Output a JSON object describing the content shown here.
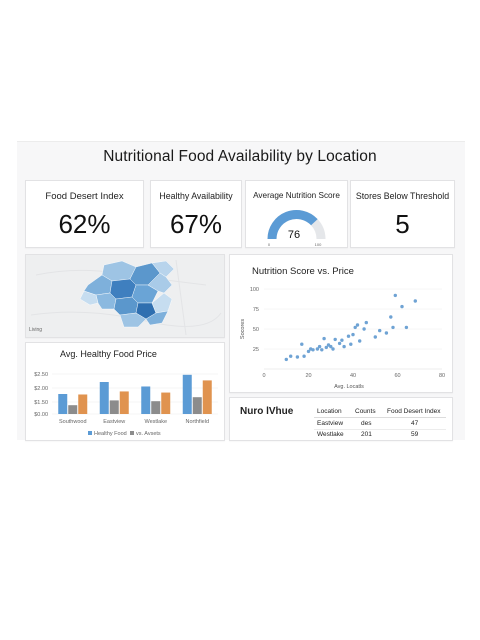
{
  "page": {
    "title": "Nutritional Food Availability by Location"
  },
  "kpis": [
    {
      "label": "Food Desert Index",
      "value": "62%"
    },
    {
      "label": "Healthy Availability",
      "value": "67%"
    },
    {
      "label": "Average Nutrition Score",
      "value": "76",
      "gauge": {
        "min": "0",
        "max": "100",
        "fraction": 0.76
      }
    },
    {
      "label": "Stores Below Threshold",
      "value": "5"
    }
  ],
  "map": {
    "caption": "Living"
  },
  "price_chart": {
    "title": "Avg. Healthy Food Price",
    "legend": [
      "Healthy Food",
      "vs. Avsets"
    ],
    "colors": {
      "healthy": "#5b9bd5",
      "second": "#8c8c8c",
      "third": "#e0934f"
    }
  },
  "scatter_chart": {
    "title": "Nutrition Score vs. Price",
    "xlabel": "Avg. Locatls",
    "ylabel": "Socores",
    "color": "#6fa3d4"
  },
  "table": {
    "brand": "Nuro lVhue",
    "headers": [
      "Location",
      "Counts",
      "Food Desert Index"
    ],
    "rows": [
      [
        "Eastview",
        "des",
        "47"
      ],
      [
        "Westlake",
        "201",
        "59"
      ]
    ]
  },
  "chart_data": [
    {
      "type": "bar",
      "title": "Avg. Healthy Food Price",
      "categories": [
        "Southwood",
        "Eastview",
        "Westlake",
        "Northfield"
      ],
      "series": [
        {
          "name": "Healthy Food",
          "values": [
            1.25,
            2.0,
            1.72,
            2.45
          ]
        },
        {
          "values": [
            0.55,
            0.85,
            0.8,
            1.05
          ]
        },
        {
          "name": "vs. Avsets",
          "values": [
            1.22,
            1.41,
            1.34,
            2.1
          ]
        }
      ],
      "yticks": [
        "$0.00",
        "$1.50",
        "$2.00",
        "$2.50"
      ],
      "ylim": [
        0,
        3.0
      ]
    },
    {
      "type": "scatter",
      "title": "Nutrition Score vs. Price",
      "xlabel": "Avg. Locatls",
      "ylabel": "Socores",
      "xlim": [
        0,
        80
      ],
      "ylim": [
        0,
        100
      ],
      "xticks": [
        0,
        20,
        40,
        60,
        80
      ],
      "yticks": [
        25,
        50,
        75,
        100
      ],
      "points": [
        [
          10,
          12
        ],
        [
          12,
          16
        ],
        [
          15,
          15
        ],
        [
          17,
          31
        ],
        [
          18,
          16
        ],
        [
          20,
          22
        ],
        [
          21,
          25
        ],
        [
          22,
          24
        ],
        [
          24,
          25
        ],
        [
          25,
          28
        ],
        [
          26,
          24
        ],
        [
          27,
          38
        ],
        [
          28,
          27
        ],
        [
          29,
          30
        ],
        [
          30,
          28
        ],
        [
          31,
          25
        ],
        [
          32,
          37
        ],
        [
          34,
          32
        ],
        [
          35,
          36
        ],
        [
          36,
          28
        ],
        [
          38,
          41
        ],
        [
          39,
          31
        ],
        [
          40,
          43
        ],
        [
          41,
          52
        ],
        [
          42,
          55
        ],
        [
          43,
          35
        ],
        [
          45,
          50
        ],
        [
          46,
          58
        ],
        [
          50,
          40
        ],
        [
          52,
          48
        ],
        [
          55,
          45
        ],
        [
          57,
          65
        ],
        [
          58,
          52
        ],
        [
          59,
          92
        ],
        [
          62,
          78
        ],
        [
          64,
          52
        ],
        [
          68,
          85
        ]
      ]
    }
  ]
}
